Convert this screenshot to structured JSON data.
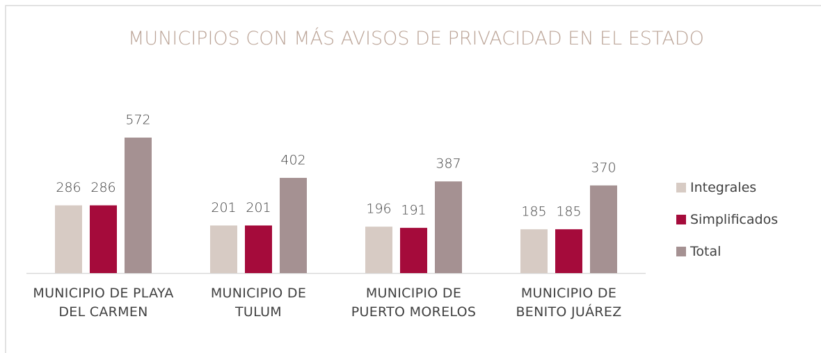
{
  "chart_data": {
    "type": "bar",
    "title": "MUNICIPIOS CON MÁS AVISOS DE PRIVACIDAD EN EL ESTADO",
    "categories": [
      "MUNICIPIO DE PLAYA DEL CARMEN",
      "MUNICIPIO DE TULUM",
      "MUNICIPIO DE PUERTO MORELOS",
      "MUNICIPIO DE BENITO JUÁREZ"
    ],
    "series": [
      {
        "name": "Integrales",
        "color": "#d7cbc4",
        "values": [
          286,
          201,
          196,
          185
        ]
      },
      {
        "name": "Simplificados",
        "color": "#a50b3b",
        "values": [
          286,
          201,
          191,
          185
        ]
      },
      {
        "name": "Total",
        "color": "#a59192",
        "values": [
          572,
          402,
          387,
          370
        ]
      }
    ],
    "legend": "right"
  }
}
